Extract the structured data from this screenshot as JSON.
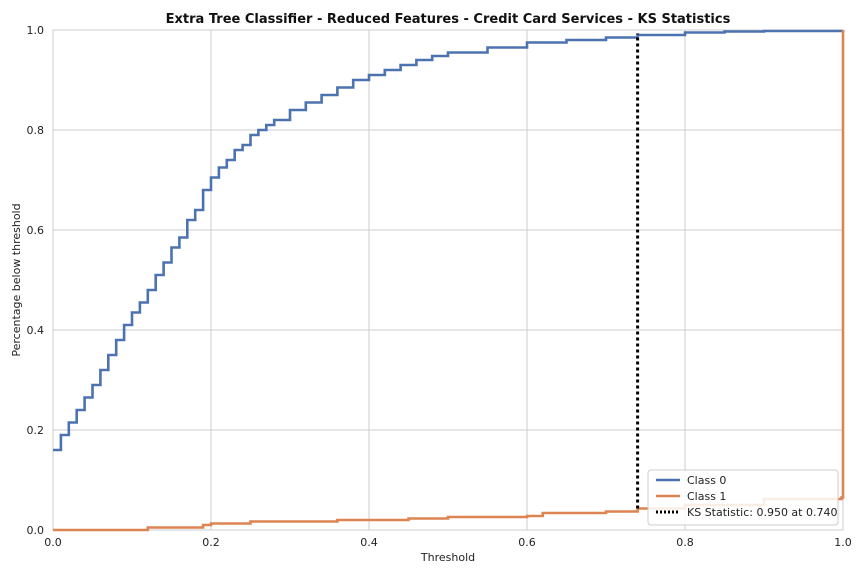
{
  "chart_data": {
    "type": "line",
    "title": "Extra Tree Classifier - Reduced Features - Credit Card Services - KS Statistics",
    "xlabel": "Threshold",
    "ylabel": "Percentage below threshold",
    "xlim": [
      0,
      1
    ],
    "ylim": [
      0,
      1
    ],
    "x_ticks": [
      "0.0",
      "0.2",
      "0.4",
      "0.6",
      "0.8",
      "1.0"
    ],
    "y_ticks": [
      "0.0",
      "0.2",
      "0.4",
      "0.6",
      "0.8",
      "1.0"
    ],
    "grid": true,
    "legend_position": "bottom-right",
    "series": [
      {
        "name": "Class 0",
        "color": "#4c72b0",
        "x": [
          0.0,
          0.01,
          0.02,
          0.03,
          0.04,
          0.05,
          0.06,
          0.07,
          0.08,
          0.09,
          0.1,
          0.11,
          0.12,
          0.13,
          0.14,
          0.15,
          0.16,
          0.17,
          0.18,
          0.19,
          0.2,
          0.21,
          0.22,
          0.23,
          0.24,
          0.25,
          0.26,
          0.27,
          0.28,
          0.3,
          0.32,
          0.34,
          0.36,
          0.38,
          0.4,
          0.42,
          0.44,
          0.46,
          0.48,
          0.5,
          0.55,
          0.6,
          0.65,
          0.7,
          0.74,
          0.8,
          0.85,
          0.9,
          1.0
        ],
        "y": [
          0.16,
          0.19,
          0.215,
          0.24,
          0.265,
          0.29,
          0.32,
          0.35,
          0.38,
          0.41,
          0.435,
          0.455,
          0.48,
          0.51,
          0.535,
          0.565,
          0.585,
          0.62,
          0.64,
          0.68,
          0.705,
          0.725,
          0.74,
          0.76,
          0.77,
          0.79,
          0.8,
          0.81,
          0.82,
          0.84,
          0.855,
          0.87,
          0.885,
          0.9,
          0.91,
          0.92,
          0.93,
          0.94,
          0.948,
          0.955,
          0.965,
          0.975,
          0.98,
          0.985,
          0.99,
          0.995,
          0.997,
          0.998,
          1.0
        ]
      },
      {
        "name": "Class 1",
        "color": "#dd8452",
        "x": [
          0.0,
          0.12,
          0.19,
          0.2,
          0.25,
          0.36,
          0.45,
          0.5,
          0.6,
          0.62,
          0.7,
          0.74,
          0.8,
          0.9,
          0.998,
          1.0
        ],
        "y": [
          0.0,
          0.005,
          0.01,
          0.013,
          0.017,
          0.02,
          0.023,
          0.026,
          0.028,
          0.034,
          0.037,
          0.043,
          0.05,
          0.062,
          0.065,
          1.0
        ]
      }
    ],
    "ks_line": {
      "label": "KS Statistic: 0.950 at 0.740",
      "x": 0.74,
      "y_from": 0.043,
      "y_to": 0.993,
      "color": "#000000",
      "style": "dotted"
    }
  }
}
